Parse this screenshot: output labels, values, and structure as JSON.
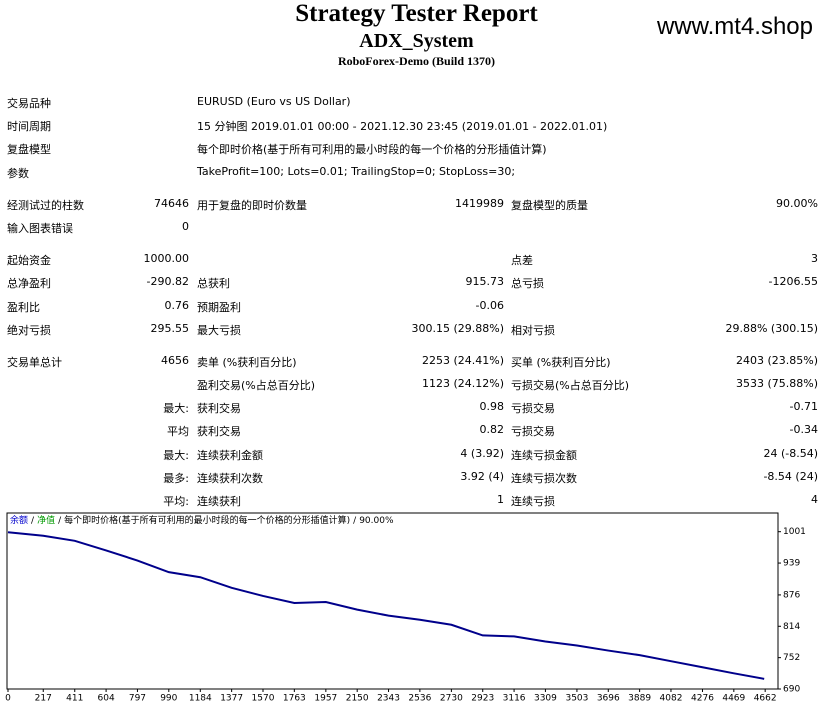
{
  "header": {
    "title": "Strategy Tester Report",
    "subtitle": "ADX_System",
    "server": "RoboForex-Demo (Build 1370)",
    "watermark": "www.mt4.shop"
  },
  "report": {
    "sections": [
      [
        {
          "c0": "交易品种",
          "wide": "EURUSD (Euro vs US Dollar)"
        },
        {
          "c0": "时间周期",
          "wide": "15 分钟图 2019.01.01 00:00 - 2021.12.30 23:45 (2019.01.01 - 2022.01.01)"
        },
        {
          "c0": "复盘模型",
          "wide": "每个即时价格(基于所有可利用的最小时段的每一个价格的分形插值计算)"
        },
        {
          "c0": "参数",
          "wide": "TakeProfit=100; Lots=0.01; TrailingStop=0; StopLoss=30;"
        }
      ],
      [
        {
          "c0": "经测试过的柱数",
          "c1": "74646",
          "c2": "用于复盘的即时价数量",
          "c3": "1419989",
          "c4": "复盘模型的质量",
          "c5": "90.00%"
        },
        {
          "c0": "输入图表错误",
          "c1": "0"
        }
      ],
      [
        {
          "c0": "起始资金",
          "c1": "1000.00",
          "c4": "点差",
          "c5": "3"
        },
        {
          "c0": "总净盈利",
          "c1": "-290.82",
          "c2": "总获利",
          "c3": "915.73",
          "c4": "总亏损",
          "c5": "-1206.55"
        },
        {
          "c0": "盈利比",
          "c1": "0.76",
          "c2": "预期盈利",
          "c3": "-0.06"
        },
        {
          "c0": "绝对亏损",
          "c1": "295.55",
          "c2": "最大亏损",
          "c3": "300.15 (29.88%)",
          "c4": "相对亏损",
          "c5": "29.88% (300.15)"
        }
      ],
      [
        {
          "c0": "交易单总计",
          "c1": "4656",
          "c2": "卖单 (%获利百分比)",
          "c3": "2253 (24.41%)",
          "c4": "买单 (%获利百分比)",
          "c5": "2403 (23.85%)"
        },
        {
          "c2": "盈利交易(%占总百分比)",
          "c3": "1123 (24.12%)",
          "c4": "亏损交易(%占总百分比)",
          "c5": "3533 (75.88%)"
        },
        {
          "c1": "最大:",
          "c2": "获利交易",
          "c3": "0.98",
          "c4": "亏损交易",
          "c5": "-0.71"
        },
        {
          "c1": "平均",
          "c2": "获利交易",
          "c3": "0.82",
          "c4": "亏损交易",
          "c5": "-0.34"
        },
        {
          "c1": "最大:",
          "c2": "连续获利金额",
          "c3": "4 (3.92)",
          "c4": "连续亏损金额",
          "c5": "24 (-8.54)"
        },
        {
          "c1": "最多:",
          "c2": "连续获利次数",
          "c3": "3.92 (4)",
          "c4": "连续亏损次数",
          "c5": "-8.54 (24)"
        },
        {
          "c1": "平均:",
          "c2": "连续获利",
          "c3": "1",
          "c4": "连续亏损",
          "c5": "4"
        }
      ]
    ]
  },
  "chart_data": {
    "type": "line",
    "legend_items": [
      {
        "text": "余额",
        "color": "#0000cc"
      },
      {
        "text": "净值",
        "color": "#009900"
      },
      {
        "text": "每个即时价格(基于所有可利用的最小时段的每一个价格的分形插值计算)",
        "color": "#000000"
      },
      {
        "text": "90.00%",
        "color": "#000000"
      }
    ],
    "legend_separator": "/",
    "x": [
      0,
      217,
      411,
      604,
      797,
      990,
      1184,
      1377,
      1570,
      1763,
      1957,
      2150,
      2343,
      2536,
      2730,
      2923,
      3116,
      3309,
      3503,
      3696,
      3889,
      4082,
      4276,
      4469,
      4656
    ],
    "series": [
      {
        "name": "余额",
        "color": "#00008b",
        "values": [
          1000,
          993,
          983,
          964,
          944,
          921,
          911,
          890,
          874,
          860,
          862,
          847,
          835,
          827,
          817,
          796,
          794,
          784,
          776,
          766,
          757,
          745,
          733,
          721,
          710
        ]
      }
    ],
    "xlim": [
      0,
      4741
    ],
    "ylim": [
      690,
      1036
    ],
    "xticks": [
      0,
      217,
      411,
      604,
      797,
      990,
      1184,
      1377,
      1570,
      1763,
      1957,
      2150,
      2343,
      2536,
      2730,
      2923,
      3116,
      3309,
      3503,
      3696,
      3889,
      4082,
      4276,
      4469,
      4662
    ],
    "yticks": [
      1001,
      939,
      876,
      814,
      752,
      690
    ]
  }
}
